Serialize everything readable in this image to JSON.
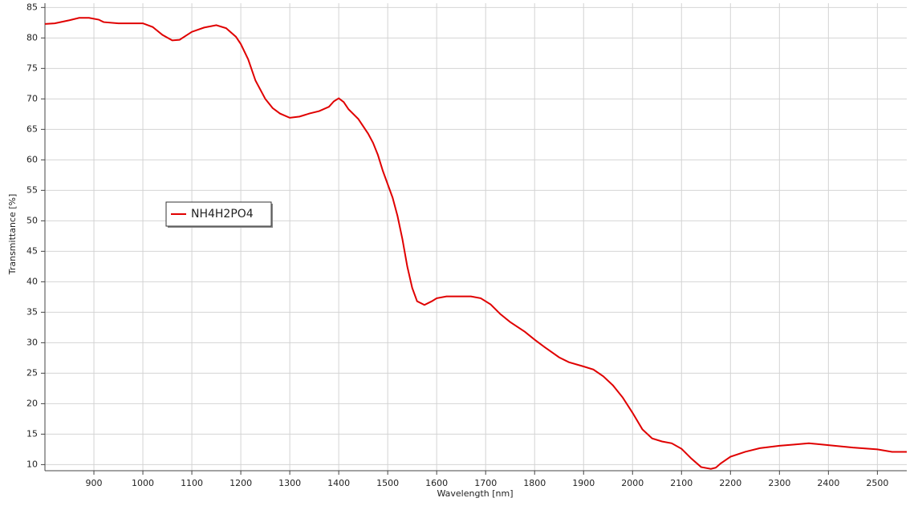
{
  "chart_data": {
    "type": "line",
    "x_label": "Wavelength [nm]",
    "y_label": "Transmittance [%]",
    "x": [
      800,
      820,
      850,
      870,
      890,
      910,
      920,
      950,
      1000,
      1020,
      1040,
      1060,
      1075,
      1100,
      1125,
      1150,
      1170,
      1190,
      1200,
      1215,
      1230,
      1250,
      1265,
      1280,
      1300,
      1320,
      1340,
      1360,
      1380,
      1390,
      1400,
      1410,
      1420,
      1440,
      1460,
      1470,
      1480,
      1490,
      1500,
      1510,
      1520,
      1530,
      1540,
      1550,
      1560,
      1575,
      1590,
      1600,
      1620,
      1650,
      1670,
      1690,
      1710,
      1730,
      1750,
      1780,
      1800,
      1820,
      1850,
      1870,
      1900,
      1920,
      1940,
      1960,
      1980,
      2000,
      2020,
      2040,
      2060,
      2080,
      2100,
      2120,
      2140,
      2160,
      2170,
      2180,
      2200,
      2230,
      2260,
      2300,
      2330,
      2360,
      2400,
      2450,
      2500,
      2530,
      2560
    ],
    "series": [
      {
        "name": "NH4H2PO4",
        "color": "#e00000",
        "values": [
          82.3,
          82.4,
          82.9,
          83.3,
          83.3,
          83.0,
          82.6,
          82.4,
          82.4,
          81.8,
          80.5,
          79.6,
          79.7,
          81.0,
          81.7,
          82.1,
          81.6,
          80.2,
          79.0,
          76.5,
          73.0,
          70.0,
          68.5,
          67.6,
          66.9,
          67.1,
          67.6,
          68.0,
          68.7,
          69.6,
          70.1,
          69.5,
          68.3,
          66.7,
          64.3,
          62.8,
          60.8,
          58.2,
          56.0,
          53.8,
          50.8,
          47.0,
          42.5,
          39.0,
          36.8,
          36.2,
          36.8,
          37.3,
          37.6,
          37.6,
          37.6,
          37.3,
          36.3,
          34.7,
          33.4,
          31.8,
          30.5,
          29.3,
          27.6,
          26.8,
          26.1,
          25.6,
          24.5,
          23.0,
          21.0,
          18.5,
          15.8,
          14.3,
          13.8,
          13.5,
          12.6,
          11.0,
          9.6,
          9.3,
          9.5,
          10.2,
          11.3,
          12.1,
          12.7,
          13.1,
          13.3,
          13.5,
          13.2,
          12.8,
          12.5,
          12.1,
          12.1
        ]
      }
    ],
    "xlim": [
      800,
      2560
    ],
    "ylim": [
      9,
      85.7
    ],
    "xticks": [
      900,
      1000,
      1100,
      1200,
      1300,
      1400,
      1500,
      1600,
      1700,
      1800,
      1900,
      2000,
      2100,
      2200,
      2300,
      2400,
      2500
    ],
    "yticks": [
      10,
      15,
      20,
      25,
      30,
      35,
      40,
      45,
      50,
      55,
      60,
      65,
      70,
      75,
      80,
      85
    ],
    "grid": true
  }
}
